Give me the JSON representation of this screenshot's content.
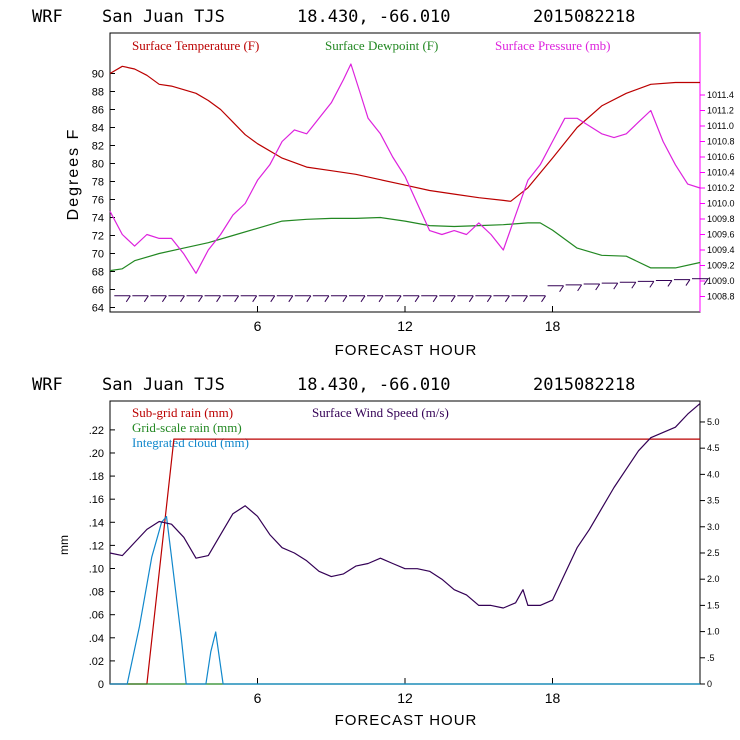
{
  "chart_data": [
    {
      "type": "line",
      "header": {
        "model": "WRF",
        "station": "San Juan TJS",
        "coords": "18.430, -66.010",
        "run": "2015082218"
      },
      "xlabel": "FORECAST HOUR",
      "ylabel": "Degrees F",
      "xlim": [
        0,
        24
      ],
      "x_ticks": [
        6,
        12,
        18
      ],
      "x_tick_labels": [
        "6",
        "12",
        "18"
      ],
      "ylim_left": [
        63.5,
        94.5
      ],
      "y_ticks_left": [
        64,
        66,
        68,
        70,
        72,
        74,
        76,
        78,
        80,
        82,
        84,
        86,
        88,
        90
      ],
      "y_tick_labels_left": [
        "64",
        "66",
        "68",
        "70",
        "72",
        "74",
        "76",
        "78",
        "80",
        "82",
        "84",
        "86",
        "88",
        "90"
      ],
      "ylim_right": [
        1008.6,
        1012.2
      ],
      "y_ticks_right": [
        1008.8,
        1009.0,
        1009.2,
        1009.4,
        1009.6,
        1009.8,
        1010.0,
        1010.2,
        1010.4,
        1010.6,
        1010.8,
        1011.0,
        1011.2,
        1011.4
      ],
      "y_tick_labels_right": [
        "1008.8",
        "1009.0",
        "1009.2",
        "1009.4",
        "1009.6",
        "1009.8",
        "1010.0",
        "1010.2",
        "1010.4",
        "1010.6",
        "1010.8",
        "1011.0",
        "1011.2",
        "1011.4"
      ],
      "series": [
        {
          "name": "Surface Temperature (F)",
          "color": "#bb0000",
          "axis": "left",
          "x": [
            0,
            0.5,
            1,
            1.5,
            2,
            2.5,
            3,
            3.5,
            4,
            4.5,
            5,
            5.5,
            6,
            7,
            8,
            9,
            10,
            11,
            12,
            13,
            14,
            15,
            16,
            16.3,
            17,
            18,
            19,
            20,
            21,
            22,
            23,
            24
          ],
          "values": [
            90.0,
            90.8,
            90.5,
            89.8,
            88.8,
            88.6,
            88.2,
            87.8,
            87.0,
            86.0,
            84.6,
            83.2,
            82.2,
            80.6,
            79.6,
            79.2,
            78.8,
            78.2,
            77.6,
            77.0,
            76.6,
            76.2,
            75.9,
            75.8,
            77.3,
            80.6,
            84.0,
            86.4,
            87.8,
            88.8,
            89.0,
            89.0
          ]
        },
        {
          "name": "Surface Dewpoint (F)",
          "color": "#228822",
          "axis": "left",
          "x": [
            0,
            0.5,
            1,
            2,
            3,
            4,
            5,
            6,
            7,
            8,
            9,
            10,
            11,
            12,
            13,
            14,
            15,
            16,
            17,
            17.5,
            18,
            19,
            20,
            21,
            22,
            23,
            24
          ],
          "values": [
            68.1,
            68.3,
            69.2,
            70.0,
            70.6,
            71.2,
            72.0,
            72.8,
            73.6,
            73.8,
            73.9,
            73.9,
            74.0,
            73.6,
            73.1,
            73.0,
            73.1,
            73.2,
            73.4,
            73.4,
            72.6,
            70.6,
            69.8,
            69.7,
            68.4,
            68.4,
            69.0
          ]
        },
        {
          "name": "Surface Pressure (mb)",
          "color": "#dd22dd",
          "axis": "right",
          "x": [
            0,
            0.5,
            1,
            1.5,
            2,
            2.5,
            3,
            3.5,
            4,
            4.5,
            5,
            5.5,
            6,
            6.5,
            7,
            7.5,
            8,
            8.5,
            9,
            9.5,
            9.8,
            10.2,
            10.5,
            11,
            11.5,
            12,
            12.5,
            13,
            13.5,
            14,
            14.5,
            15,
            15.5,
            16,
            16.5,
            17,
            17.5,
            18,
            18.5,
            19,
            19.5,
            20,
            20.5,
            21,
            21.5,
            22,
            22.5,
            23,
            23.5,
            24
          ],
          "values": [
            1009.9,
            1009.6,
            1009.45,
            1009.6,
            1009.55,
            1009.55,
            1009.35,
            1009.1,
            1009.4,
            1009.6,
            1009.85,
            1010.0,
            1010.3,
            1010.5,
            1010.8,
            1010.95,
            1010.9,
            1011.1,
            1011.3,
            1011.6,
            1011.8,
            1011.4,
            1011.1,
            1010.9,
            1010.6,
            1010.35,
            1010.0,
            1009.65,
            1009.6,
            1009.65,
            1009.6,
            1009.75,
            1009.6,
            1009.4,
            1009.85,
            1010.3,
            1010.5,
            1010.8,
            1011.1,
            1011.1,
            1011.0,
            1010.9,
            1010.85,
            1010.9,
            1011.05,
            1011.2,
            1010.8,
            1010.5,
            1010.25,
            1010.2
          ]
        }
      ],
      "wind_barbs": {
        "rows": 2,
        "x_start": 0.5,
        "x_end": 24,
        "count": 33
      }
    },
    {
      "type": "line",
      "header": {
        "model": "WRF",
        "station": "San Juan TJS",
        "coords": "18.430, -66.010",
        "run": "2015082218"
      },
      "xlabel": "FORECAST HOUR",
      "ylabel": "mm",
      "xlim": [
        0,
        24
      ],
      "x_ticks": [
        6,
        12,
        18
      ],
      "x_tick_labels": [
        "6",
        "12",
        "18"
      ],
      "ylim_left": [
        0,
        0.245
      ],
      "y_ticks_left": [
        0,
        0.02,
        0.04,
        0.06,
        0.08,
        0.1,
        0.12,
        0.14,
        0.16,
        0.18,
        0.2,
        0.22
      ],
      "y_tick_labels_left": [
        "0",
        ".02",
        ".04",
        ".06",
        ".08",
        ".10",
        ".12",
        ".14",
        ".16",
        ".18",
        ".20",
        ".22"
      ],
      "ylim_right": [
        0,
        5.4
      ],
      "y_ticks_right": [
        0,
        0.5,
        1.0,
        1.5,
        2.0,
        2.5,
        3.0,
        3.5,
        4.0,
        4.5,
        5.0
      ],
      "y_tick_labels_right": [
        "0",
        ".5",
        "1.0",
        "1.5",
        "2.0",
        "2.5",
        "3.0",
        "3.5",
        "4.0",
        "4.5",
        "5.0"
      ],
      "series": [
        {
          "name": "Sub-grid rain (mm)",
          "color": "#bb0000",
          "axis": "left",
          "x": [
            0,
            1.5,
            2.6,
            24
          ],
          "values": [
            0,
            0,
            0.212,
            0.212
          ]
        },
        {
          "name": "Grid-scale rain (mm)",
          "color": "#228822",
          "axis": "left",
          "x": [
            0,
            24
          ],
          "values": [
            0,
            0
          ]
        },
        {
          "name": "Integrated cloud (mm)",
          "color": "#1188cc",
          "axis": "left",
          "x": [
            0,
            0.7,
            1.2,
            1.7,
            2.1,
            2.3,
            2.5,
            2.9,
            3.1,
            3.5,
            3.9,
            4.1,
            4.3,
            4.6,
            24
          ],
          "values": [
            0,
            0,
            0.05,
            0.11,
            0.14,
            0.145,
            0.11,
            0.04,
            0,
            0,
            0,
            0.028,
            0.045,
            0,
            0
          ]
        },
        {
          "name": "Surface Wind Speed (m/s)",
          "color": "#330055",
          "axis": "right",
          "x": [
            0,
            0.5,
            1,
            1.5,
            2,
            2.5,
            3,
            3.5,
            4,
            4.5,
            5,
            5.5,
            6,
            6.5,
            7,
            7.5,
            8,
            8.5,
            9,
            9.5,
            10,
            10.5,
            11,
            11.5,
            12,
            12.5,
            13,
            13.5,
            14,
            14.5,
            15,
            15.5,
            16,
            16.5,
            16.8,
            17,
            17.5,
            18,
            18.5,
            19,
            19.5,
            20,
            20.5,
            21,
            21.5,
            22,
            22.5,
            23,
            23.5,
            24
          ],
          "values": [
            2.5,
            2.45,
            2.7,
            2.95,
            3.1,
            3.05,
            2.8,
            2.4,
            2.45,
            2.85,
            3.25,
            3.4,
            3.2,
            2.85,
            2.6,
            2.5,
            2.35,
            2.15,
            2.05,
            2.1,
            2.25,
            2.3,
            2.4,
            2.3,
            2.2,
            2.2,
            2.15,
            2.0,
            1.8,
            1.7,
            1.5,
            1.5,
            1.45,
            1.55,
            1.8,
            1.5,
            1.5,
            1.6,
            2.1,
            2.6,
            2.95,
            3.35,
            3.75,
            4.1,
            4.45,
            4.7,
            4.8,
            4.9,
            5.15,
            5.35
          ]
        }
      ]
    }
  ]
}
